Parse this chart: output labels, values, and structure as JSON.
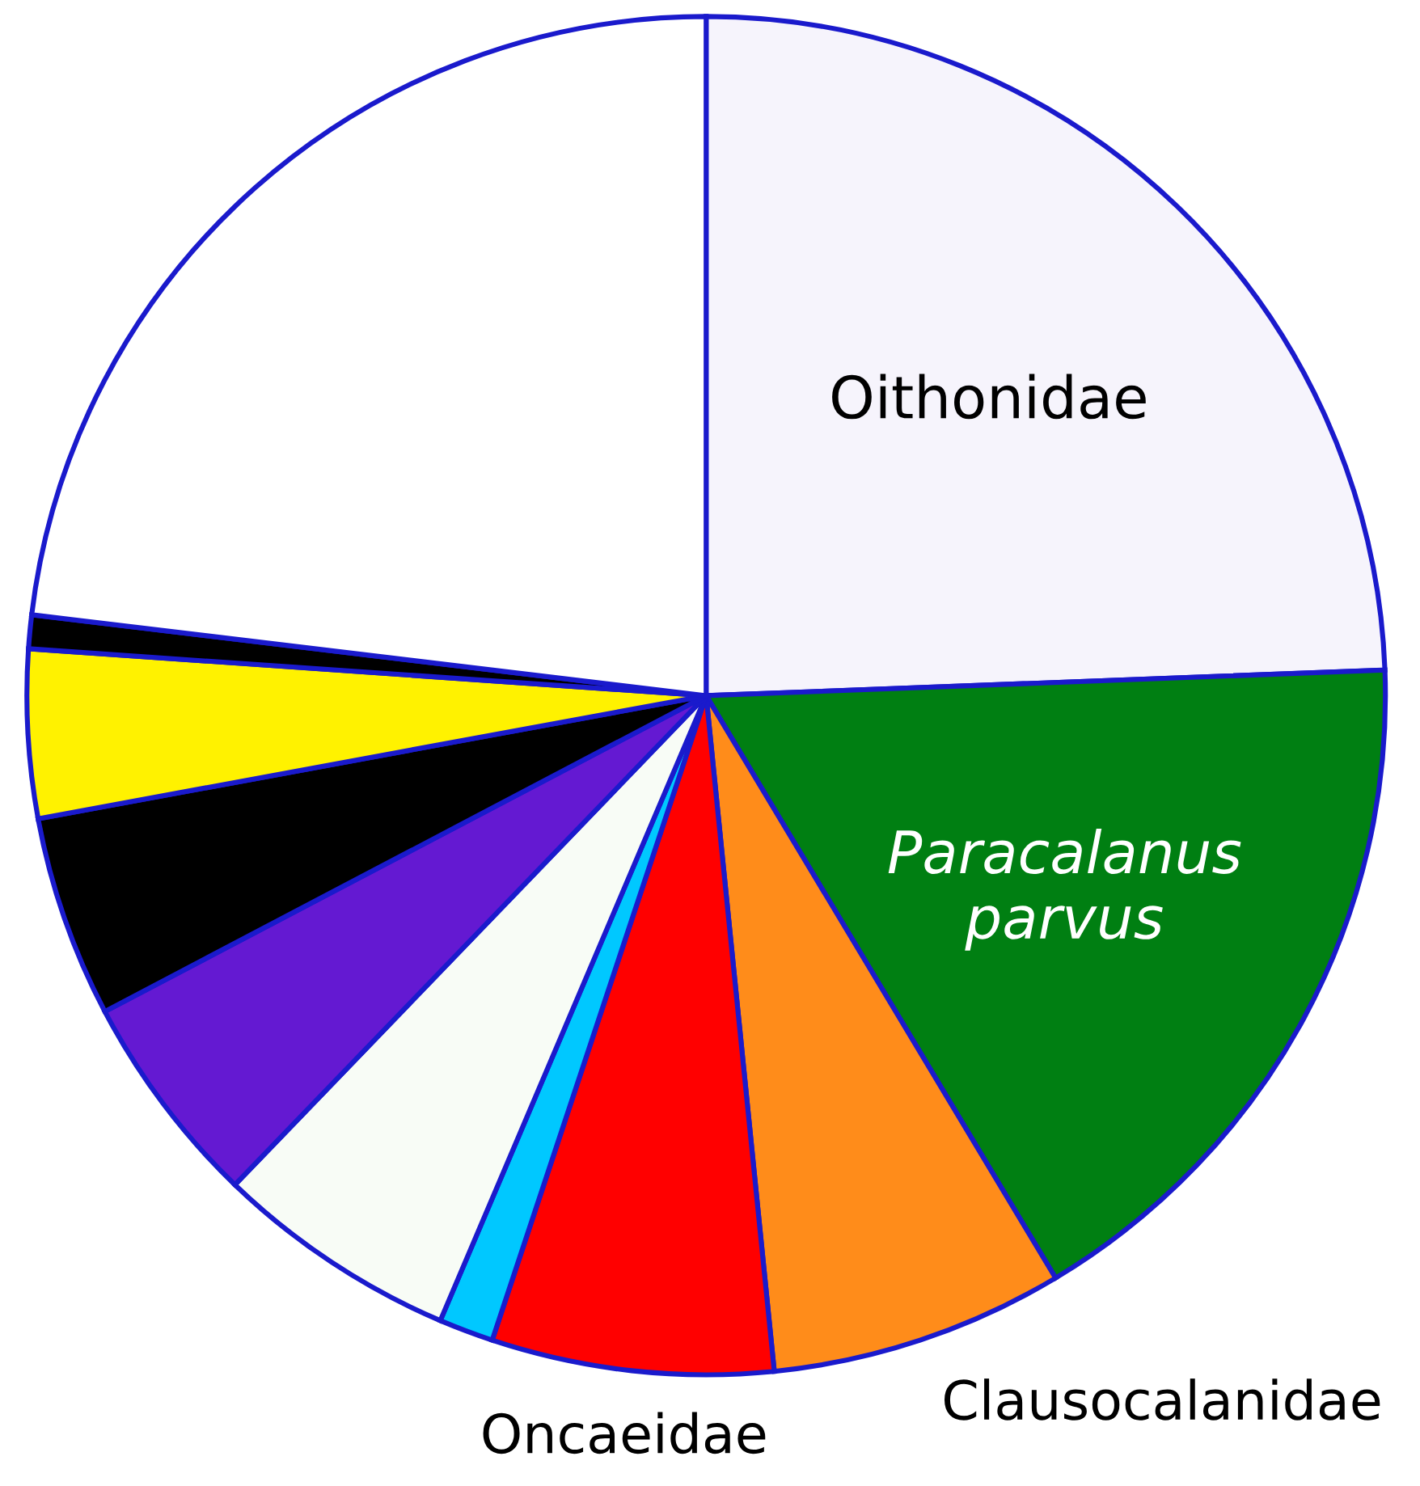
{
  "chart_data": {
    "type": "pie",
    "categories": [
      "Oithonidae",
      "Paracalanus parvus",
      "Clausocalanidae",
      "Oncaeidae",
      null,
      null,
      null,
      null,
      null,
      null,
      null
    ],
    "values": [
      24.4,
      17.0,
      7.0,
      6.7,
      1.3,
      5.8,
      5.1,
      4.8,
      4.0,
      0.8,
      23.1
    ],
    "colors": [
      "#f6f4fc",
      "#007f12",
      "#ff8c1a",
      "#ff0000",
      "#00c8ff",
      "#f8fcf6",
      "#6419d2",
      "#000000",
      "#fff200",
      "#000000",
      "#ffffff"
    ]
  }
}
